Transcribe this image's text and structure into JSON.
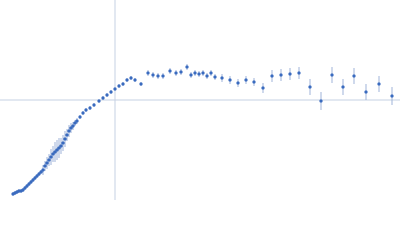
{
  "chart_data": {
    "type": "scatter",
    "color": "#3a6bbf",
    "error_color": "#9fb3d8",
    "ref_color": "#c5d1e3",
    "xlim": [
      0,
      400
    ],
    "ylim": [
      0,
      200
    ],
    "reference_lines": {
      "x": 115,
      "y": 100
    },
    "x": [
      13,
      15,
      17,
      19,
      21,
      23,
      25,
      27,
      29,
      31,
      33,
      35,
      37,
      39,
      41,
      43,
      45,
      47,
      49,
      51,
      53,
      55,
      57,
      59,
      61,
      63,
      65,
      67,
      69,
      71,
      73,
      75,
      77,
      80,
      83,
      86,
      90,
      94,
      99,
      103,
      107,
      111,
      115,
      119,
      123,
      127,
      131,
      135,
      141,
      148,
      153,
      158,
      163,
      170,
      176,
      181,
      187,
      191,
      195,
      199,
      203,
      207,
      211,
      215,
      222,
      230,
      238,
      246,
      254,
      263,
      272,
      281,
      290,
      299,
      310,
      321,
      332,
      343,
      354,
      366,
      379,
      392
    ],
    "values": [
      6,
      7,
      8,
      9,
      9,
      10,
      12,
      14,
      16,
      18,
      20,
      22,
      24,
      26,
      28,
      30,
      34,
      37,
      40,
      43,
      46,
      48,
      50,
      52,
      54,
      57,
      61,
      65,
      69,
      72,
      74,
      77,
      79,
      83,
      87,
      90,
      92,
      95,
      99,
      102,
      105,
      108,
      111,
      114,
      116,
      120,
      122,
      120,
      116,
      127,
      125,
      124,
      124,
      129,
      127,
      128,
      133,
      125,
      127,
      126,
      127,
      124,
      127,
      123,
      122,
      120,
      117,
      120,
      118,
      112,
      124,
      125,
      126,
      127,
      113,
      99,
      125,
      113,
      124,
      108,
      116,
      104
    ],
    "errors": [
      2,
      2,
      2,
      2,
      2,
      2,
      2,
      2,
      2,
      2,
      2,
      2,
      2,
      2,
      2,
      5,
      5,
      6,
      6,
      8,
      8,
      10,
      10,
      10,
      8,
      8,
      8,
      6,
      6,
      5,
      4,
      3,
      3,
      2,
      2,
      2,
      2,
      2,
      2,
      2,
      2,
      2,
      2,
      2,
      2,
      2,
      2,
      2,
      2,
      3,
      3,
      3,
      3,
      3,
      3,
      3,
      3,
      3,
      3,
      3,
      3,
      3,
      3,
      3,
      4,
      4,
      4,
      4,
      4,
      5,
      6,
      6,
      6,
      6,
      8,
      9,
      8,
      8,
      8,
      8,
      8,
      9
    ]
  }
}
